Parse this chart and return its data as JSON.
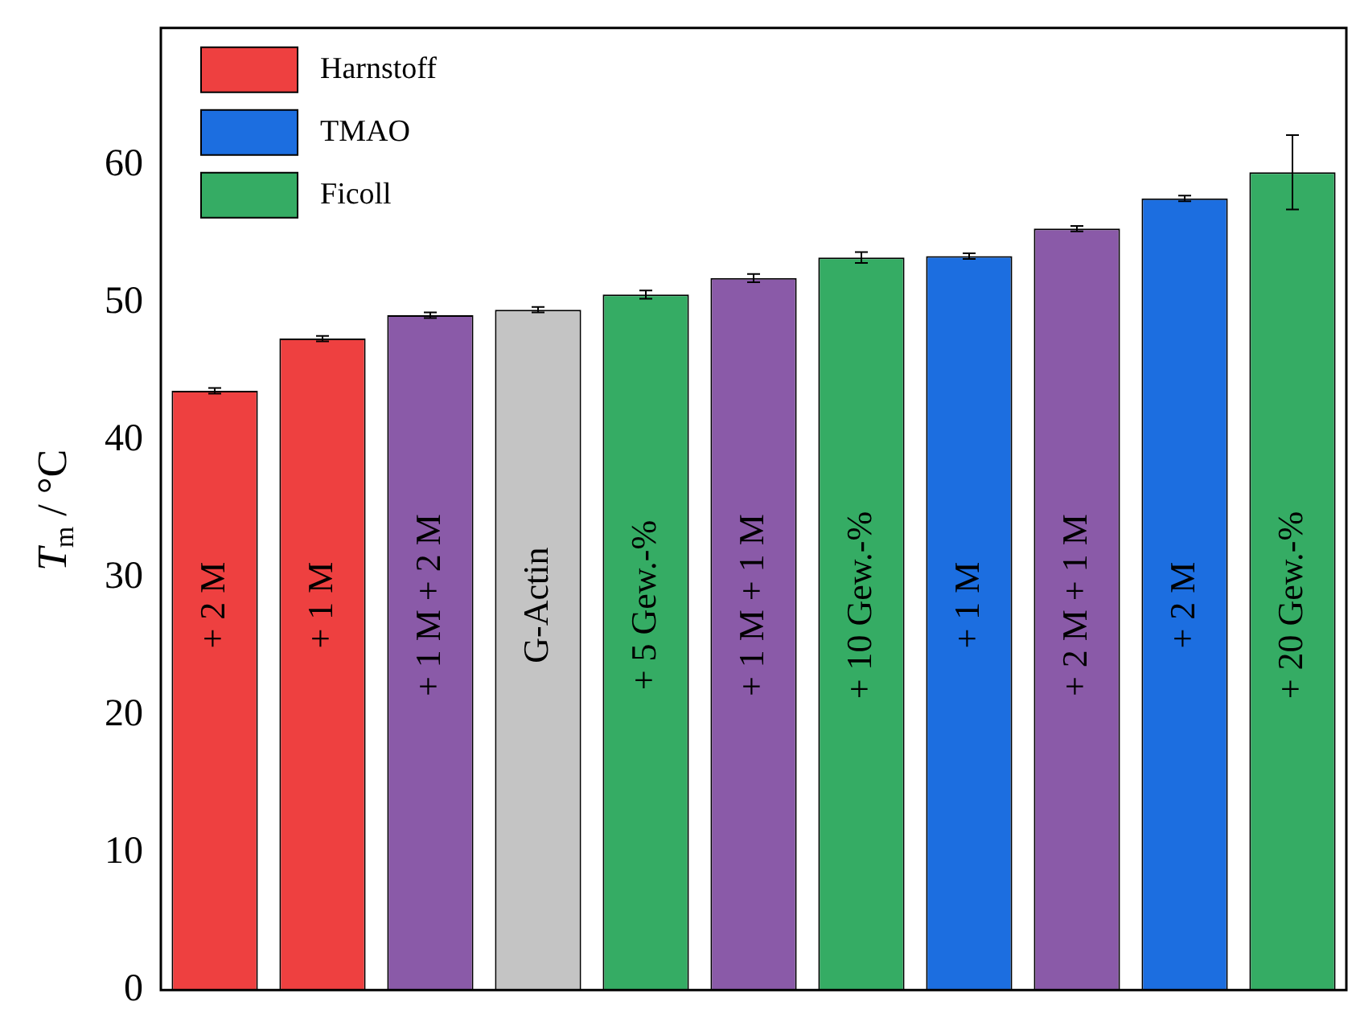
{
  "chart_data": {
    "type": "bar",
    "ylabel": "T$_{m}$ / °C",
    "categories": [
      "+ 2 M",
      "+ 1 M",
      "+ 1 M + 2 M",
      "G-Actin",
      "+ 5 Gew.-%",
      "+ 1 M + 1 M",
      "+ 10 Gew.-%",
      "+ 1 M",
      "+ 2 M + 1 M",
      "+ 2 M",
      "+ 20 Gew.-%"
    ],
    "series": [
      {
        "name": "Harnstoff",
        "color": "#ee4040",
        "values": [
          43.6,
          47.4,
          null,
          null,
          null,
          null,
          null,
          null,
          null,
          null,
          null
        ],
        "errors": [
          0.2,
          0.2,
          null,
          null,
          null,
          null,
          null,
          null,
          null,
          null,
          null
        ]
      },
      {
        "name": "TMAO",
        "color": "#1c6ee0",
        "values": [
          null,
          null,
          null,
          null,
          null,
          null,
          null,
          53.4,
          null,
          57.6,
          null
        ],
        "errors": [
          null,
          null,
          null,
          null,
          null,
          null,
          null,
          0.2,
          null,
          0.2,
          null
        ]
      },
      {
        "name": "Ficoll",
        "color": "#35ac64",
        "values": [
          null,
          null,
          null,
          null,
          50.6,
          null,
          53.3,
          null,
          null,
          null,
          59.5
        ],
        "errors": [
          null,
          null,
          null,
          null,
          0.3,
          null,
          0.4,
          null,
          null,
          null,
          2.7
        ]
      },
      {
        "color": "#c4c4c4",
        "values": [
          null,
          null,
          null,
          49.5,
          null,
          null,
          null,
          null,
          null,
          null,
          null
        ],
        "errors": [
          null,
          null,
          null,
          0.2,
          null,
          null,
          null,
          null,
          null,
          null,
          null
        ]
      },
      {
        "color": "#8a5aa8",
        "values": [
          null,
          null,
          49.1,
          null,
          null,
          51.8,
          null,
          null,
          55.4,
          null,
          null
        ],
        "errors": [
          null,
          null,
          0.2,
          null,
          null,
          0.3,
          null,
          null,
          0.2,
          null,
          null
        ]
      }
    ],
    "ylim": [
      0,
      70
    ],
    "yticks": [
      0,
      10,
      20,
      30,
      40,
      50,
      60
    ],
    "legend": "top left",
    "grid": false
  }
}
